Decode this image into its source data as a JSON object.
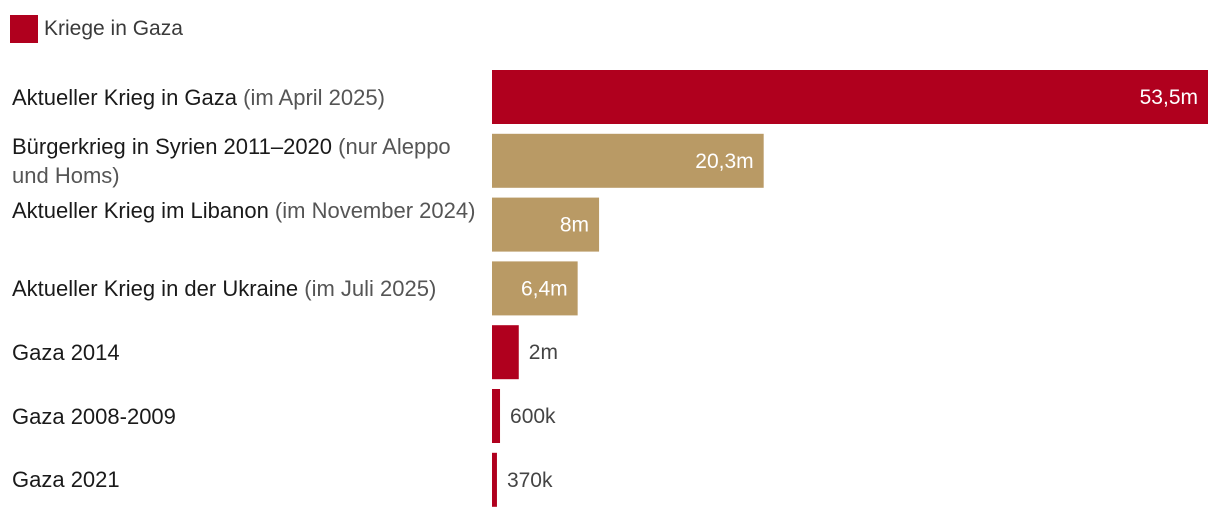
{
  "legend": {
    "label": "Kriege in Gaza",
    "color": "#b0001e"
  },
  "colors": {
    "gaza": "#b0001e",
    "other": "#b99a65",
    "value_inside": "#ffffff",
    "value_outside": "#444444"
  },
  "chart_data": {
    "type": "bar",
    "orientation": "horizontal",
    "grid": false,
    "legend_position": "top-left",
    "legend": [
      "Kriege in Gaza"
    ],
    "categories": [
      "Aktueller Krieg in Gaza (im April 2025)",
      "Bürgerkrieg in Syrien 2011–2020 (nur Aleppo und Homs)",
      "Aktueller Krieg im Libanon (im November 2024)",
      "Aktueller Krieg in der Ukraine (im Juli 2025)",
      "Gaza 2014",
      "Gaza 2008-2009",
      "Gaza 2021"
    ],
    "rows": [
      {
        "main": "Aktueller Krieg in Gaza",
        "sub": " (im April 2025)",
        "value": 53500000,
        "value_label": "53,5m",
        "group": "gaza"
      },
      {
        "main": "Bürgerkrieg in Syrien 2011–2020",
        "sub": " (nur Aleppo und Homs)",
        "value": 20300000,
        "value_label": "20,3m",
        "group": "other"
      },
      {
        "main": "Aktueller Krieg im Libanon",
        "sub": " (im November 2024)",
        "value": 8000000,
        "value_label": "8m",
        "group": "other"
      },
      {
        "main": "Aktueller Krieg in der Ukraine",
        "sub": " (im Juli 2025)",
        "value": 6400000,
        "value_label": "6,4m",
        "group": "other"
      },
      {
        "main": "Gaza 2014",
        "sub": "",
        "value": 2000000,
        "value_label": "2m",
        "group": "gaza"
      },
      {
        "main": "Gaza 2008-2009",
        "sub": "",
        "value": 600000,
        "value_label": "600k",
        "group": "gaza"
      },
      {
        "main": "Gaza 2021",
        "sub": "",
        "value": 370000,
        "value_label": "370k",
        "group": "gaza"
      }
    ],
    "xlim": [
      0,
      53500000
    ]
  }
}
